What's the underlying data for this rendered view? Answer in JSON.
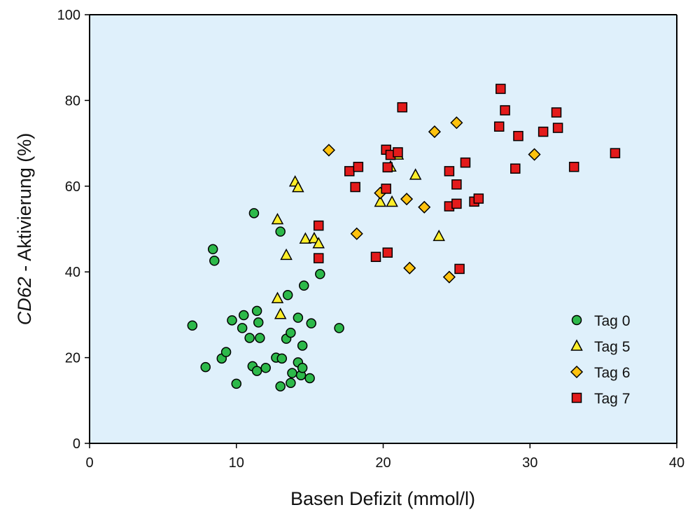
{
  "chart_data": {
    "type": "scatter",
    "title": "",
    "xlabel": "Basen Defizit (mmol/l)",
    "ylabel_italic": "CD62",
    "ylabel_rest": " - Aktivierung (%)",
    "xlim": [
      0,
      40
    ],
    "ylim": [
      0,
      100
    ],
    "x_ticks": [
      "0",
      "10",
      "20",
      "30",
      "40"
    ],
    "y_ticks": [
      "0",
      "20",
      "40",
      "60",
      "80",
      "100"
    ],
    "grid": false,
    "legend_position": "bottom-right",
    "plot_background": "#dff0fb",
    "series": [
      {
        "name": "Tag 0",
        "marker": "circle",
        "color": "#2db94a",
        "points": [
          [
            7.0,
            27.5
          ],
          [
            7.9,
            17.8
          ],
          [
            8.4,
            45.3
          ],
          [
            8.5,
            42.6
          ],
          [
            9.0,
            19.8
          ],
          [
            9.3,
            21.3
          ],
          [
            9.7,
            28.7
          ],
          [
            10.0,
            13.9
          ],
          [
            10.4,
            26.9
          ],
          [
            10.5,
            29.9
          ],
          [
            10.9,
            24.6
          ],
          [
            11.1,
            18.0
          ],
          [
            11.2,
            53.7
          ],
          [
            11.4,
            16.9
          ],
          [
            11.4,
            30.9
          ],
          [
            11.5,
            28.2
          ],
          [
            11.6,
            24.6
          ],
          [
            12.0,
            17.6
          ],
          [
            12.7,
            20.0
          ],
          [
            13.0,
            49.4
          ],
          [
            13.0,
            13.3
          ],
          [
            13.1,
            19.8
          ],
          [
            13.4,
            24.4
          ],
          [
            13.5,
            34.6
          ],
          [
            13.7,
            14.1
          ],
          [
            13.7,
            25.8
          ],
          [
            13.8,
            16.4
          ],
          [
            14.2,
            29.3
          ],
          [
            14.2,
            18.9
          ],
          [
            14.4,
            15.9
          ],
          [
            14.5,
            17.6
          ],
          [
            14.5,
            22.8
          ],
          [
            14.6,
            36.8
          ],
          [
            15.0,
            15.2
          ],
          [
            15.1,
            28.0
          ],
          [
            15.7,
            39.5
          ],
          [
            17.0,
            26.9
          ]
        ]
      },
      {
        "name": "Tag 5",
        "marker": "triangle",
        "color": "#ffef2a",
        "points": [
          [
            12.8,
            33.8
          ],
          [
            12.8,
            52.2
          ],
          [
            13.0,
            30.1
          ],
          [
            13.4,
            43.9
          ],
          [
            14.0,
            61.0
          ],
          [
            14.2,
            59.7
          ],
          [
            14.7,
            47.7
          ],
          [
            15.3,
            47.8
          ],
          [
            15.6,
            46.6
          ],
          [
            19.8,
            56.3
          ],
          [
            20.5,
            64.5
          ],
          [
            20.6,
            56.3
          ],
          [
            21.0,
            67.3
          ],
          [
            22.2,
            62.6
          ],
          [
            23.8,
            48.3
          ]
        ]
      },
      {
        "name": "Tag 6",
        "marker": "diamond",
        "color": "#ffc20e",
        "points": [
          [
            16.3,
            68.4
          ],
          [
            18.2,
            48.9
          ],
          [
            19.8,
            58.4
          ],
          [
            21.6,
            57.0
          ],
          [
            21.8,
            40.9
          ],
          [
            22.8,
            55.1
          ],
          [
            23.5,
            72.7
          ],
          [
            24.5,
            38.8
          ],
          [
            25.0,
            74.8
          ],
          [
            30.3,
            67.4
          ]
        ]
      },
      {
        "name": "Tag 7",
        "marker": "square",
        "color": "#e31b1b",
        "points": [
          [
            15.6,
            50.8
          ],
          [
            15.6,
            43.2
          ],
          [
            17.7,
            63.5
          ],
          [
            18.1,
            59.8
          ],
          [
            18.3,
            64.5
          ],
          [
            19.5,
            43.5
          ],
          [
            20.2,
            59.4
          ],
          [
            20.2,
            68.5
          ],
          [
            20.3,
            44.5
          ],
          [
            20.3,
            64.4
          ],
          [
            20.5,
            67.3
          ],
          [
            21.0,
            67.9
          ],
          [
            21.3,
            78.4
          ],
          [
            24.5,
            63.5
          ],
          [
            24.5,
            55.3
          ],
          [
            25.0,
            60.4
          ],
          [
            25.0,
            55.9
          ],
          [
            25.2,
            40.7
          ],
          [
            25.6,
            65.5
          ],
          [
            26.2,
            56.4
          ],
          [
            26.5,
            57.1
          ],
          [
            27.9,
            73.9
          ],
          [
            28.0,
            82.7
          ],
          [
            28.3,
            77.7
          ],
          [
            29.0,
            64.1
          ],
          [
            29.2,
            71.7
          ],
          [
            30.9,
            72.7
          ],
          [
            31.8,
            77.2
          ],
          [
            31.9,
            73.6
          ],
          [
            33.0,
            64.5
          ],
          [
            35.8,
            67.7
          ]
        ]
      }
    ]
  }
}
